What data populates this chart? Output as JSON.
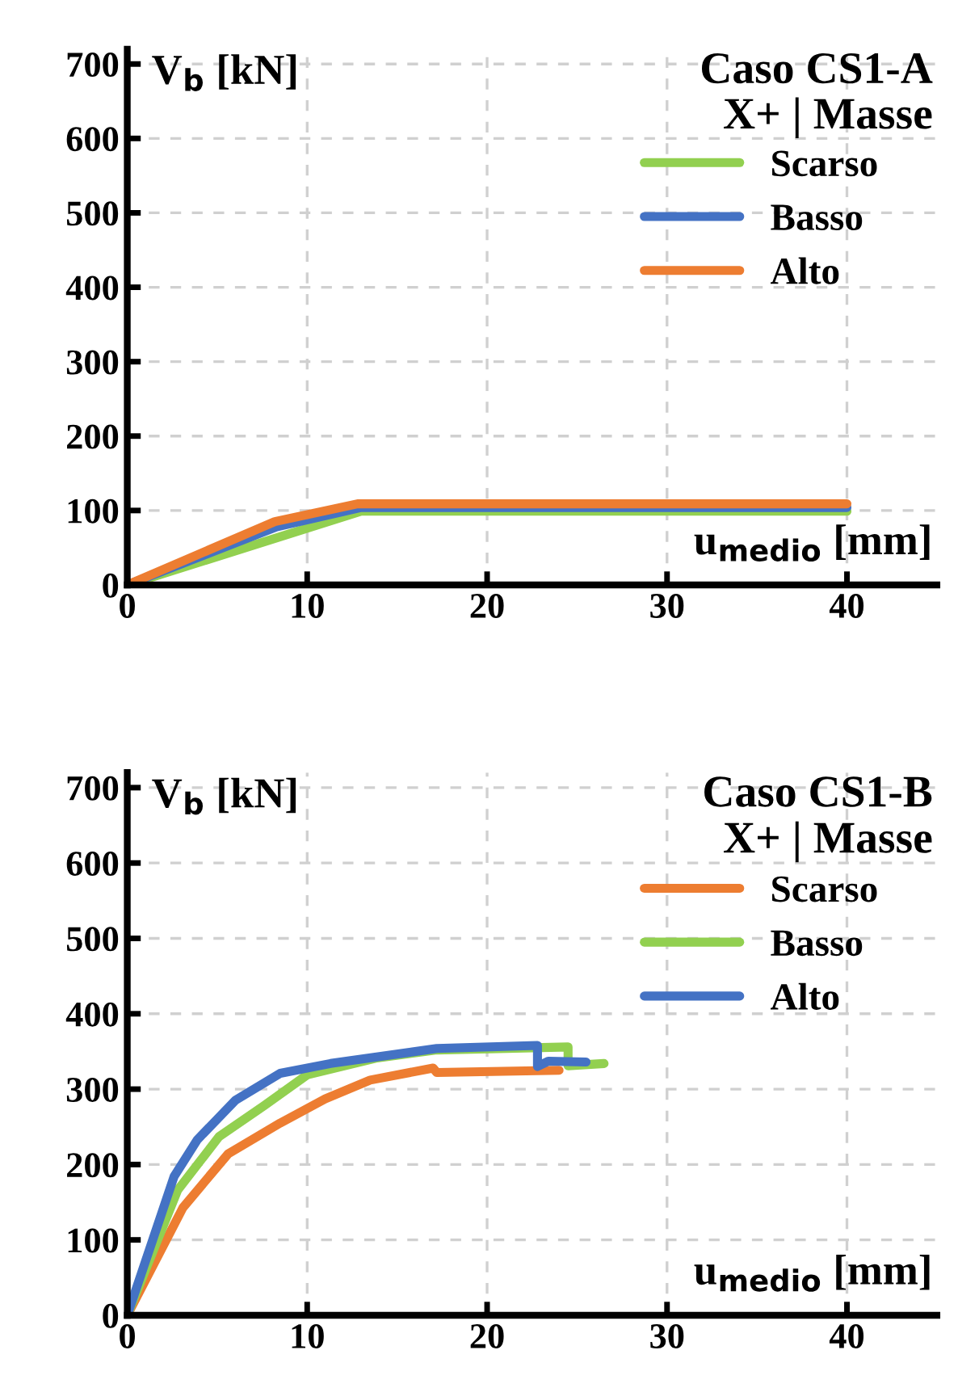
{
  "chart_data": [
    {
      "type": "line",
      "title": "Caso CS1-A",
      "subtitle": "X+ | Masse",
      "xlabel": "u$_{medio}$ [mm]",
      "ylabel": "V$_{b}$ [kN]",
      "xlim": [
        0,
        45
      ],
      "xticks": [
        0,
        10,
        20,
        30,
        40
      ],
      "ylim": [
        0,
        720
      ],
      "yticks": [
        0,
        100,
        200,
        300,
        400,
        500,
        600,
        700
      ],
      "grid": true,
      "legend": "right",
      "marker": "none",
      "line_style": "solid",
      "series": [
        {
          "name": "Scarso",
          "color": "#92d050",
          "x": [
            0,
            13,
            40
          ],
          "values": [
            0,
            99,
            99
          ]
        },
        {
          "name": "Basso",
          "color": "#4472c4",
          "x": [
            0,
            8.3,
            13,
            40
          ],
          "values": [
            0,
            78,
            104,
            104
          ]
        },
        {
          "name": "Alto",
          "color": "#ed7d31",
          "x": [
            0,
            8.2,
            12.8,
            40
          ],
          "values": [
            0,
            85,
            109,
            109
          ]
        }
      ]
    },
    {
      "type": "line",
      "title": "Caso CS1-B",
      "subtitle": "X+ | Masse",
      "xlabel": "u$_{medio}$ [mm]",
      "ylabel": "V$_{b}$ [kN]",
      "xlim": [
        0,
        45
      ],
      "xticks": [
        0,
        10,
        20,
        30,
        40
      ],
      "ylim": [
        0,
        720
      ],
      "yticks": [
        0,
        100,
        200,
        300,
        400,
        500,
        600,
        700
      ],
      "grid": true,
      "legend": "right",
      "marker": "none",
      "line_style": "solid",
      "series": [
        {
          "name": "Scarso",
          "color": "#ed7d31",
          "x": [
            0,
            3.1,
            5.6,
            8.5,
            11,
            13.5,
            17,
            17.2,
            24
          ],
          "values": [
            0,
            143,
            214,
            255,
            287,
            312,
            328,
            322,
            325
          ]
        },
        {
          "name": "Basso",
          "color": "#92d050",
          "x": [
            0,
            2.8,
            5.1,
            7.6,
            10,
            13.8,
            17.2,
            24.5,
            24.5,
            26.5
          ],
          "values": [
            0,
            166,
            237,
            278,
            319,
            341,
            352,
            356,
            331,
            334
          ]
        },
        {
          "name": "Alto",
          "color": "#4472c4",
          "x": [
            0,
            2.6,
            3.9,
            6,
            8.5,
            11.3,
            17.2,
            22.8,
            22.8,
            23.4,
            25.5
          ],
          "values": [
            0,
            184,
            233,
            285,
            321,
            334,
            354,
            358,
            330,
            337,
            336
          ]
        }
      ]
    }
  ]
}
